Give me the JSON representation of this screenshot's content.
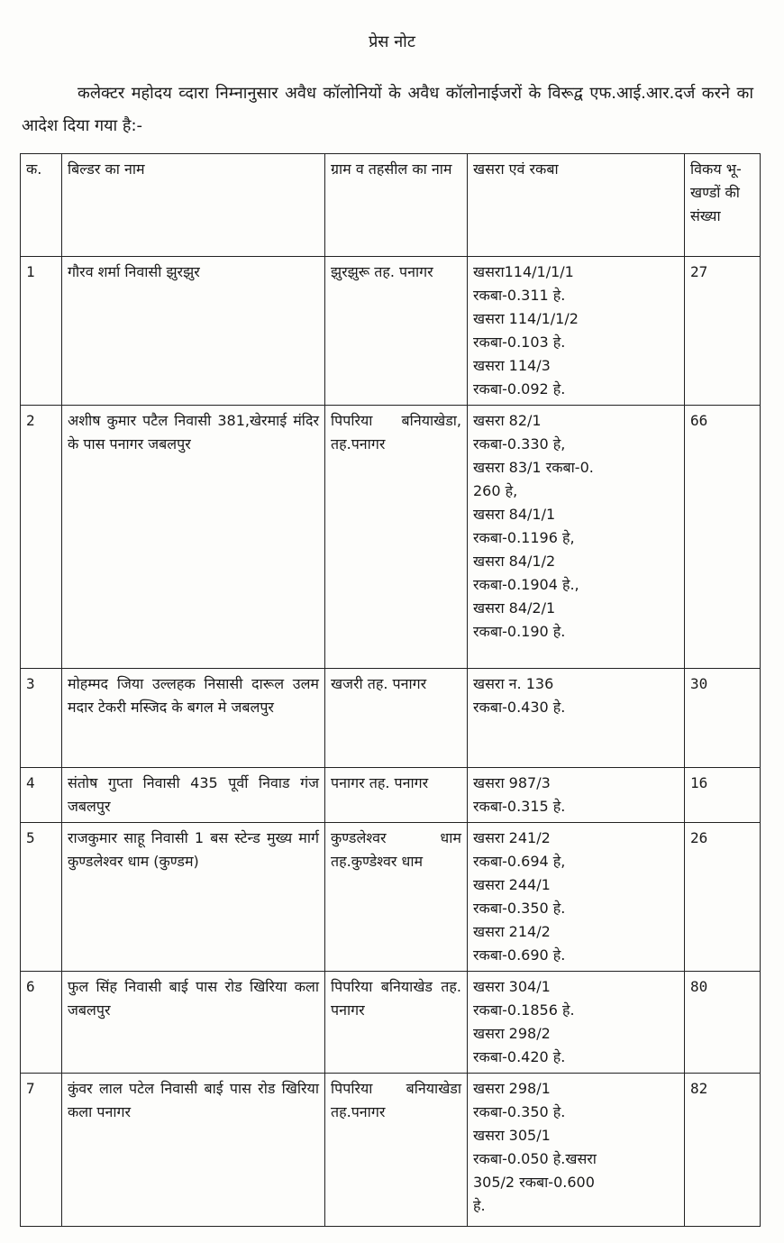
{
  "title": "प्रेस नोट",
  "intro": "कलेक्टर महोदय व्दारा निम्नानुसार अवैध कॉलोनियों के अवैध कॉलोनाईजरों के विरूद्व एफ.आई.आर.दर्ज करने का आदेश दिया गया है:-",
  "table": {
    "headers": [
      "क.",
      "बिल्डर का नाम",
      "ग्राम व तहसील का नाम",
      "खसरा एवं रकबा",
      "विकय भू-खण्डों की संख्या"
    ],
    "rows": [
      {
        "sr": "1",
        "builder": "गौरव शर्मा निवासी झुरझुर",
        "village": "झुरझुरू तह. पनागर",
        "khasra": [
          "खसरा114/1/1/1",
          "रकबा-0.311 हे.",
          "खसरा 114/1/1/2",
          "रकबा-0.103 हे.",
          "खसरा 114/3",
          "रकबा-0.092 हे."
        ],
        "plots": "27"
      },
      {
        "sr": "2",
        "builder": "अशीष कुमार पटैल निवासी 381,खेरमाई मंदिर के पास पनागर जबलपुर",
        "village": "पिपरिया बनियाखेडा, तह.पनागर",
        "khasra": [
          "खसरा 82/1",
          "रकबा-0.330 हे,",
          "खसरा 83/1 रकबा-0.",
          "260 हे,",
          "खसरा 84/1/1",
          "रकबा-0.1196 हे,",
          "खसरा 84/1/2",
          "रकबा-0.1904 हे.,",
          "खसरा 84/2/1",
          "रकबा-0.190 हे."
        ],
        "plots": "66"
      },
      {
        "sr": "3",
        "builder": "मोहम्मद जिया उल्लहक निसासी दारूल उलम मदार टेकरी मस्जिद के बगल मे जबलपुर",
        "village": "खजरी तह. पनागर",
        "khasra": [
          "खसरा न. 136",
          "रकबा-0.430 हे."
        ],
        "plots": "30"
      },
      {
        "sr": "4",
        "builder": "संतोष गुप्ता निवासी 435 पूर्वी निवाड गंज जबलपुर",
        "village": "पनागर तह. पनागर",
        "khasra": [
          "खसरा 987/3",
          "रकबा-0.315 हे."
        ],
        "plots": "16"
      },
      {
        "sr": "5",
        "builder": "राजकुमार साहू निवासी 1 बस स्टेन्ड मुख्य मार्ग कुण्डलेश्वर धाम (कुण्डम)",
        "village": "कुण्डलेश्वर धाम तह.कुण्डेश्वर धाम",
        "khasra": [
          "खसरा 241/2",
          "रकबा-0.694 हे,",
          "खसरा 244/1",
          "रकबा-0.350 हे.",
          "खसरा 214/2",
          "रकबा-0.690 हे."
        ],
        "plots": "26"
      },
      {
        "sr": "6",
        "builder": "फुल सिंह निवासी बाई पास रोड खिरिया कला जबलपुर",
        "village": "पिपरिया बनियाखेड तह. पनागर",
        "khasra": [
          "खसरा 304/1",
          "रकबा-0.1856 हे.",
          "खसरा 298/2",
          "रकबा-0.420 हे."
        ],
        "plots": "80"
      },
      {
        "sr": "7",
        "builder": "कुंवर लाल पटेल निवासी बाई पास रोड खिरिया कला पनागर",
        "village": "पिपरिया बनियाखेडा तह.पनागर",
        "khasra": [
          "खसरा 298/1",
          "रकबा-0.350 हे.",
          "खसरा 305/1",
          "रकबा-0.050 हे.खसरा",
          "305/2 रकबा-0.600",
          "हे."
        ],
        "plots": "82"
      }
    ]
  }
}
